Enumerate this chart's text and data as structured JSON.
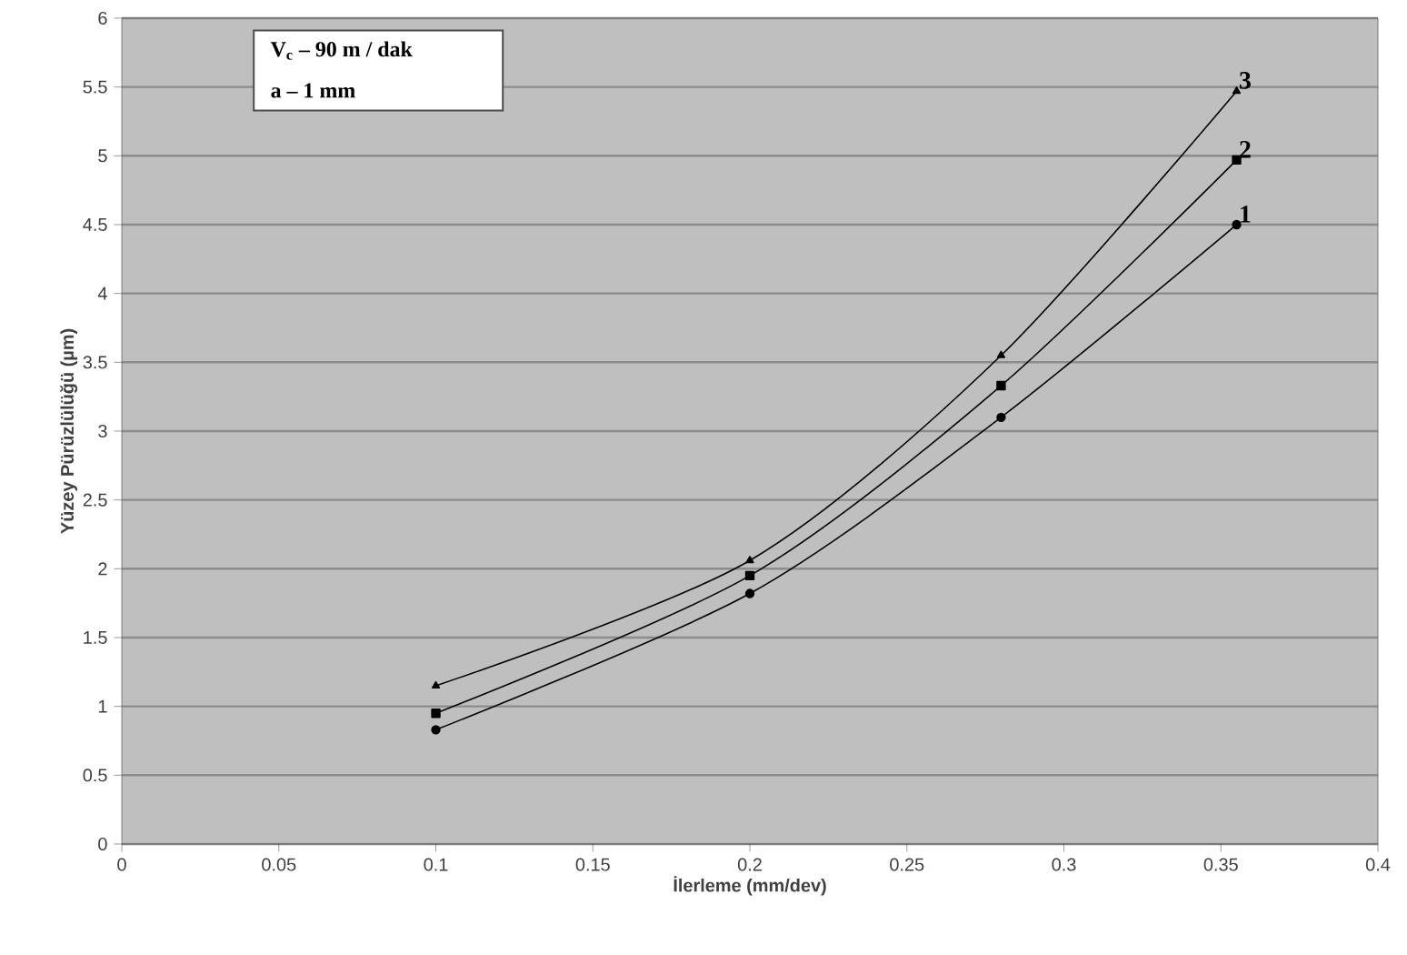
{
  "chart_data": {
    "type": "line",
    "xlabel": "İlerleme (mm/dev)",
    "ylabel": "Yüzey Pürüzlülüğü (µm)",
    "annotations": [
      "V$_{c}$ – 90 m / dak",
      "a – 1 mm"
    ],
    "x": [
      0.1,
      0.2,
      0.28,
      0.355
    ],
    "series": [
      {
        "name": "1",
        "color": "#000000",
        "marker": "circle",
        "values": [
          0.83,
          1.82,
          3.1,
          4.5
        ]
      },
      {
        "name": "2",
        "color": "#000000",
        "marker": "square",
        "values": [
          0.95,
          1.95,
          3.33,
          4.97
        ]
      },
      {
        "name": "3",
        "color": "#000000",
        "marker": "triangle",
        "values": [
          1.15,
          2.06,
          3.55,
          5.47
        ]
      }
    ],
    "xlim": [
      0,
      0.4
    ],
    "xticks": [
      0,
      0.05,
      0.1,
      0.15,
      0.2,
      0.25,
      0.3,
      0.35,
      0.4
    ],
    "ylim": [
      0,
      6
    ],
    "yticks": [
      0,
      0.5,
      1,
      1.5,
      2,
      2.5,
      3,
      3.5,
      4,
      4.5,
      5,
      5.5,
      6
    ],
    "grid": "y",
    "line_style": "solid"
  }
}
